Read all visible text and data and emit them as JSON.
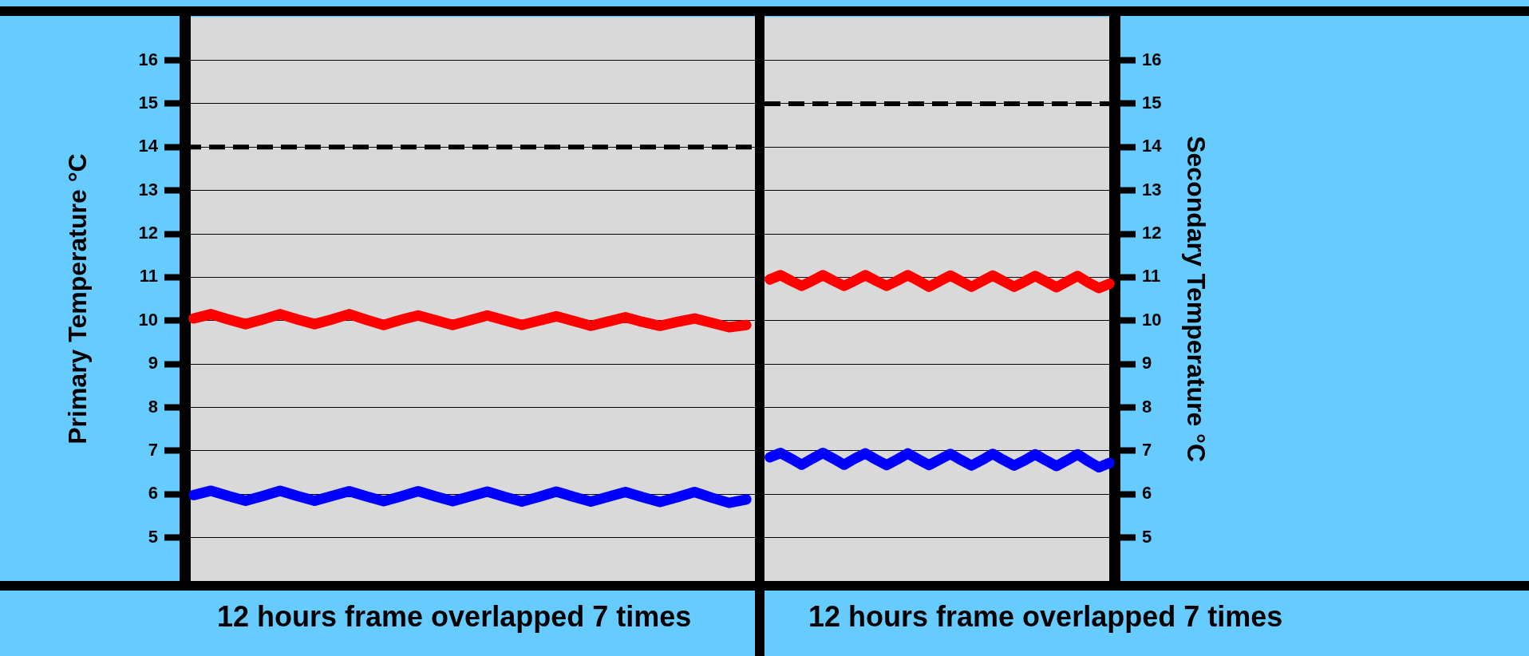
{
  "chart_data": [
    {
      "type": "line",
      "ylabel": "Primary Temperature °C",
      "xlabel": "12 hours frame overlapped 7 times",
      "categories": [
        null,
        null,
        null,
        null,
        null,
        null,
        null,
        null,
        null,
        null,
        null,
        null,
        null,
        null,
        null,
        null,
        null,
        null,
        null,
        null,
        null,
        null,
        null,
        null,
        null,
        null,
        null,
        null,
        null,
        null,
        null,
        null,
        null
      ],
      "ylim": [
        4,
        17
      ],
      "yticks": [
        5,
        6,
        7,
        8,
        9,
        10,
        11,
        12,
        13,
        14,
        15,
        16
      ],
      "grid": "y",
      "marker": "none",
      "line_style": "solid",
      "series": [
        {
          "color": "#ff0000",
          "values": [
            10.05,
            10.15,
            10.03,
            9.92,
            10.03,
            10.15,
            10.03,
            9.92,
            10.03,
            10.15,
            10.02,
            9.9,
            10.02,
            10.12,
            10.01,
            9.9,
            10.01,
            10.12,
            10.01,
            9.9,
            10,
            10.1,
            9.99,
            9.88,
            9.98,
            10.08,
            9.97,
            9.88,
            9.97,
            10.05,
            9.95,
            9.85,
            9.9
          ]
        },
        {
          "color": "#0000ff",
          "values": [
            5.98,
            6.08,
            5.96,
            5.85,
            5.96,
            6.08,
            5.96,
            5.85,
            5.96,
            6.07,
            5.95,
            5.84,
            5.95,
            6.07,
            5.95,
            5.84,
            5.95,
            6.06,
            5.94,
            5.83,
            5.94,
            6.06,
            5.94,
            5.83,
            5.94,
            6.05,
            5.93,
            5.82,
            5.93,
            6.05,
            5.92,
            5.8,
            5.88
          ]
        }
      ],
      "ref_lines": [
        {
          "axis": "y",
          "value": 14,
          "color": "#000000",
          "line_style": "dashed"
        }
      ]
    },
    {
      "type": "line",
      "ylabel": "Secondary Temperature °C",
      "xlabel": "12 hours frame overlapped 7 times",
      "categories": [
        null,
        null,
        null,
        null,
        null,
        null,
        null,
        null,
        null,
        null,
        null,
        null,
        null,
        null,
        null,
        null,
        null,
        null,
        null,
        null,
        null,
        null,
        null,
        null,
        null,
        null,
        null,
        null,
        null,
        null,
        null,
        null,
        null
      ],
      "ylim": [
        4,
        17
      ],
      "yticks": [
        5,
        6,
        7,
        8,
        9,
        10,
        11,
        12,
        13,
        14,
        15,
        16
      ],
      "grid": "y",
      "marker": "none",
      "line_style": "solid",
      "series": [
        {
          "color": "#ff0000",
          "values": [
            10.95,
            11.05,
            10.92,
            10.8,
            10.92,
            11.05,
            10.92,
            10.8,
            10.92,
            11.05,
            10.92,
            10.8,
            10.92,
            11.05,
            10.92,
            10.78,
            10.91,
            11.04,
            10.91,
            10.78,
            10.91,
            11.04,
            10.91,
            10.78,
            10.9,
            11.03,
            10.9,
            10.77,
            10.9,
            11.03,
            10.88,
            10.75,
            10.85
          ]
        },
        {
          "color": "#0000ff",
          "values": [
            6.85,
            6.95,
            6.82,
            6.68,
            6.82,
            6.95,
            6.82,
            6.68,
            6.82,
            6.94,
            6.8,
            6.67,
            6.8,
            6.94,
            6.8,
            6.67,
            6.8,
            6.93,
            6.79,
            6.66,
            6.79,
            6.93,
            6.79,
            6.66,
            6.78,
            6.92,
            6.78,
            6.65,
            6.78,
            6.92,
            6.76,
            6.62,
            6.72
          ]
        }
      ],
      "ref_lines": [
        {
          "axis": "y",
          "value": 15,
          "color": "#000000",
          "line_style": "dashed"
        }
      ]
    }
  ]
}
